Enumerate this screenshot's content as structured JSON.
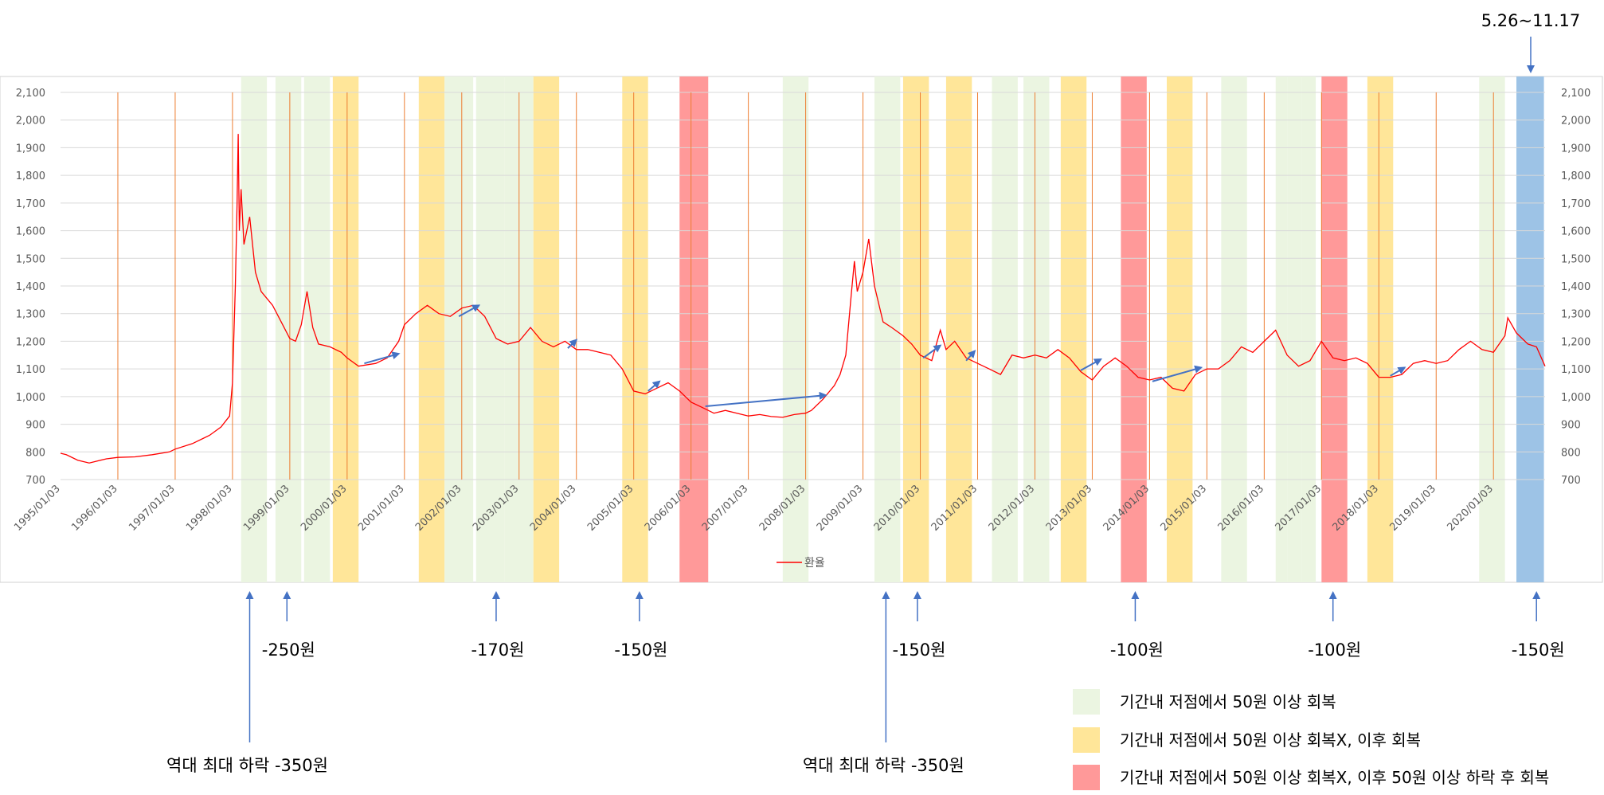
{
  "chart_data": {
    "type": "line",
    "title": "",
    "xlabel": "",
    "ylabel": "",
    "ylim": [
      700,
      2100
    ],
    "yticks": [
      "2,100",
      "2,000",
      "1,900",
      "1,800",
      "1,700",
      "1,600",
      "1,500",
      "1,400",
      "1,300",
      "1,200",
      "1,100",
      "1,000",
      "900",
      "800",
      "700"
    ],
    "xticks": [
      "1995/01/03",
      "1996/01/03",
      "1997/01/03",
      "1998/01/03",
      "1999/01/03",
      "2000/01/03",
      "2001/01/03",
      "2002/01/03",
      "2003/01/03",
      "2004/01/03",
      "2005/01/03",
      "2006/01/03",
      "2007/01/03",
      "2008/01/03",
      "2009/01/03",
      "2010/01/03",
      "2011/01/03",
      "2012/01/03",
      "2013/01/03",
      "2014/01/03",
      "2015/01/03",
      "2016/01/03",
      "2017/01/03",
      "2018/01/03",
      "2019/01/03",
      "2020/01/03"
    ],
    "series": [
      {
        "name": "환율",
        "color": "#ff0000",
        "points": [
          [
            1995.0,
            795
          ],
          [
            1995.1,
            790
          ],
          [
            1995.3,
            770
          ],
          [
            1995.5,
            760
          ],
          [
            1995.8,
            775
          ],
          [
            1996.0,
            780
          ],
          [
            1996.3,
            782
          ],
          [
            1996.6,
            790
          ],
          [
            1996.9,
            800
          ],
          [
            1997.0,
            810
          ],
          [
            1997.3,
            830
          ],
          [
            1997.6,
            860
          ],
          [
            1997.8,
            890
          ],
          [
            1997.95,
            930
          ],
          [
            1998.0,
            1050
          ],
          [
            1998.05,
            1400
          ],
          [
            1998.08,
            1700
          ],
          [
            1998.1,
            1950
          ],
          [
            1998.12,
            1600
          ],
          [
            1998.15,
            1750
          ],
          [
            1998.2,
            1550
          ],
          [
            1998.3,
            1650
          ],
          [
            1998.4,
            1450
          ],
          [
            1998.5,
            1380
          ],
          [
            1998.7,
            1330
          ],
          [
            1998.8,
            1290
          ],
          [
            1998.9,
            1250
          ],
          [
            1999.0,
            1210
          ],
          [
            1999.1,
            1200
          ],
          [
            1999.2,
            1260
          ],
          [
            1999.3,
            1380
          ],
          [
            1999.4,
            1250
          ],
          [
            1999.5,
            1190
          ],
          [
            1999.7,
            1180
          ],
          [
            1999.9,
            1160
          ],
          [
            2000.0,
            1140
          ],
          [
            2000.2,
            1110
          ],
          [
            2000.5,
            1120
          ],
          [
            2000.7,
            1140
          ],
          [
            2000.9,
            1200
          ],
          [
            2001.0,
            1260
          ],
          [
            2001.2,
            1300
          ],
          [
            2001.4,
            1330
          ],
          [
            2001.6,
            1300
          ],
          [
            2001.8,
            1290
          ],
          [
            2002.0,
            1320
          ],
          [
            2002.2,
            1330
          ],
          [
            2002.4,
            1290
          ],
          [
            2002.6,
            1210
          ],
          [
            2002.8,
            1190
          ],
          [
            2003.0,
            1200
          ],
          [
            2003.2,
            1250
          ],
          [
            2003.4,
            1200
          ],
          [
            2003.6,
            1180
          ],
          [
            2003.8,
            1200
          ],
          [
            2004.0,
            1170
          ],
          [
            2004.2,
            1170
          ],
          [
            2004.4,
            1160
          ],
          [
            2004.6,
            1150
          ],
          [
            2004.8,
            1100
          ],
          [
            2005.0,
            1020
          ],
          [
            2005.2,
            1010
          ],
          [
            2005.4,
            1030
          ],
          [
            2005.6,
            1050
          ],
          [
            2005.8,
            1020
          ],
          [
            2006.0,
            980
          ],
          [
            2006.2,
            960
          ],
          [
            2006.4,
            940
          ],
          [
            2006.6,
            950
          ],
          [
            2006.8,
            940
          ],
          [
            2007.0,
            930
          ],
          [
            2007.2,
            935
          ],
          [
            2007.4,
            928
          ],
          [
            2007.6,
            925
          ],
          [
            2007.8,
            935
          ],
          [
            2008.0,
            940
          ],
          [
            2008.1,
            950
          ],
          [
            2008.3,
            990
          ],
          [
            2008.5,
            1040
          ],
          [
            2008.6,
            1080
          ],
          [
            2008.7,
            1150
          ],
          [
            2008.8,
            1380
          ],
          [
            2008.85,
            1490
          ],
          [
            2008.9,
            1380
          ],
          [
            2009.0,
            1450
          ],
          [
            2009.1,
            1570
          ],
          [
            2009.2,
            1400
          ],
          [
            2009.35,
            1270
          ],
          [
            2009.5,
            1250
          ],
          [
            2009.7,
            1220
          ],
          [
            2009.85,
            1190
          ],
          [
            2010.0,
            1150
          ],
          [
            2010.2,
            1130
          ],
          [
            2010.35,
            1240
          ],
          [
            2010.45,
            1170
          ],
          [
            2010.6,
            1200
          ],
          [
            2010.8,
            1140
          ],
          [
            2011.0,
            1120
          ],
          [
            2011.2,
            1100
          ],
          [
            2011.4,
            1080
          ],
          [
            2011.6,
            1150
          ],
          [
            2011.8,
            1140
          ],
          [
            2012.0,
            1150
          ],
          [
            2012.2,
            1140
          ],
          [
            2012.4,
            1170
          ],
          [
            2012.6,
            1140
          ],
          [
            2012.8,
            1090
          ],
          [
            2013.0,
            1060
          ],
          [
            2013.2,
            1110
          ],
          [
            2013.4,
            1140
          ],
          [
            2013.6,
            1110
          ],
          [
            2013.8,
            1070
          ],
          [
            2014.0,
            1060
          ],
          [
            2014.2,
            1070
          ],
          [
            2014.4,
            1030
          ],
          [
            2014.6,
            1020
          ],
          [
            2014.8,
            1080
          ],
          [
            2015.0,
            1100
          ],
          [
            2015.2,
            1100
          ],
          [
            2015.4,
            1130
          ],
          [
            2015.6,
            1180
          ],
          [
            2015.8,
            1160
          ],
          [
            2016.0,
            1200
          ],
          [
            2016.2,
            1240
          ],
          [
            2016.4,
            1150
          ],
          [
            2016.6,
            1110
          ],
          [
            2016.8,
            1130
          ],
          [
            2017.0,
            1200
          ],
          [
            2017.2,
            1140
          ],
          [
            2017.4,
            1130
          ],
          [
            2017.6,
            1140
          ],
          [
            2017.8,
            1120
          ],
          [
            2018.0,
            1070
          ],
          [
            2018.2,
            1070
          ],
          [
            2018.4,
            1080
          ],
          [
            2018.6,
            1120
          ],
          [
            2018.8,
            1130
          ],
          [
            2019.0,
            1120
          ],
          [
            2019.2,
            1130
          ],
          [
            2019.4,
            1170
          ],
          [
            2019.6,
            1200
          ],
          [
            2019.8,
            1170
          ],
          [
            2020.0,
            1160
          ],
          [
            2020.2,
            1220
          ],
          [
            2020.25,
            1285
          ],
          [
            2020.4,
            1230
          ],
          [
            2020.6,
            1190
          ],
          [
            2020.75,
            1180
          ],
          [
            2020.9,
            1110
          ]
        ]
      }
    ],
    "legend": [
      "환율"
    ],
    "legend_position": "bottom",
    "vertical_lines": [
      1996.0,
      1997.0,
      1998.0,
      1999.0,
      2000.0,
      2001.0,
      2002.0,
      2003.0,
      2004.0,
      2005.0,
      2006.0,
      2007.0,
      2008.0,
      2009.0,
      2010.0,
      2011.0,
      2012.0,
      2013.0,
      2014.0,
      2015.0,
      2016.0,
      2017.0,
      2018.0,
      2019.0,
      2020.0
    ],
    "bands": [
      {
        "from": 1998.15,
        "to": 1998.6,
        "color": "green"
      },
      {
        "from": 1998.75,
        "to": 1999.2,
        "color": "green"
      },
      {
        "from": 1999.25,
        "to": 1999.7,
        "color": "green"
      },
      {
        "from": 1999.75,
        "to": 2000.2,
        "color": "yellow"
      },
      {
        "from": 2001.25,
        "to": 2001.7,
        "color": "yellow"
      },
      {
        "from": 2001.7,
        "to": 2002.2,
        "color": "green"
      },
      {
        "from": 2002.25,
        "to": 2002.75,
        "color": "green"
      },
      {
        "from": 2002.75,
        "to": 2003.25,
        "color": "green"
      },
      {
        "from": 2003.25,
        "to": 2003.7,
        "color": "yellow"
      },
      {
        "from": 2004.8,
        "to": 2005.25,
        "color": "yellow"
      },
      {
        "from": 2005.8,
        "to": 2006.3,
        "color": "red"
      },
      {
        "from": 2007.6,
        "to": 2008.05,
        "color": "green"
      },
      {
        "from": 2009.2,
        "to": 2009.65,
        "color": "green"
      },
      {
        "from": 2009.7,
        "to": 2010.15,
        "color": "yellow"
      },
      {
        "from": 2010.45,
        "to": 2010.9,
        "color": "yellow"
      },
      {
        "from": 2011.25,
        "to": 2011.7,
        "color": "green"
      },
      {
        "from": 2011.8,
        "to": 2012.25,
        "color": "green"
      },
      {
        "from": 2012.45,
        "to": 2012.9,
        "color": "yellow"
      },
      {
        "from": 2013.5,
        "to": 2013.95,
        "color": "red"
      },
      {
        "from": 2014.3,
        "to": 2014.75,
        "color": "yellow"
      },
      {
        "from": 2015.25,
        "to": 2015.7,
        "color": "green"
      },
      {
        "from": 2016.2,
        "to": 2016.4,
        "color": "green"
      },
      {
        "from": 2016.4,
        "to": 2016.65,
        "color": "green"
      },
      {
        "from": 2016.65,
        "to": 2016.9,
        "color": "green"
      },
      {
        "from": 2017.0,
        "to": 2017.45,
        "color": "red"
      },
      {
        "from": 2017.8,
        "to": 2018.25,
        "color": "yellow"
      },
      {
        "from": 2019.75,
        "to": 2020.2,
        "color": "green"
      },
      {
        "from": 2020.4,
        "to": 2020.88,
        "color": "blue"
      }
    ],
    "trend_arrows": [
      [
        [
          2000.3,
          1120
        ],
        [
          2000.9,
          1155
        ]
      ],
      [
        [
          2001.95,
          1290
        ],
        [
          2002.3,
          1330
        ]
      ],
      [
        [
          2003.85,
          1175
        ],
        [
          2004.0,
          1205
        ]
      ],
      [
        [
          2005.25,
          1020
        ],
        [
          2005.45,
          1055
        ]
      ],
      [
        [
          2006.25,
          965
        ],
        [
          2008.35,
          1005
        ]
      ],
      [
        [
          2010.05,
          1140
        ],
        [
          2010.35,
          1185
        ]
      ],
      [
        [
          2010.8,
          1130
        ],
        [
          2010.95,
          1165
        ]
      ],
      [
        [
          2012.8,
          1095
        ],
        [
          2013.15,
          1135
        ]
      ],
      [
        [
          2014.05,
          1055
        ],
        [
          2014.9,
          1105
        ]
      ],
      [
        [
          2018.2,
          1075
        ],
        [
          2018.45,
          1105
        ]
      ]
    ]
  },
  "annotations": {
    "top_label": "5.26~11.17",
    "drops": [
      {
        "x": 1998.3,
        "text": "역대 최대 하락 -350원",
        "long": true
      },
      {
        "x": 1998.95,
        "text": "-250원",
        "long": false
      },
      {
        "x": 2002.6,
        "text": "-170원",
        "long": false
      },
      {
        "x": 2005.1,
        "text": "-150원",
        "long": false
      },
      {
        "x": 2009.4,
        "text": "역대 최대 하락 -350원",
        "long": true
      },
      {
        "x": 2009.95,
        "text": "-150원",
        "long": false
      },
      {
        "x": 2013.75,
        "text": "-100원",
        "long": false
      },
      {
        "x": 2017.2,
        "text": "-100원",
        "long": false
      },
      {
        "x": 2020.75,
        "text": "-150원",
        "long": false
      }
    ]
  },
  "legend_box": [
    {
      "color": "#EBF5E1",
      "label": "기간내 저점에서 50원 이상 회복"
    },
    {
      "color": "#FFE699",
      "label": "기간내 저점에서 50원 이상 회복X, 이후 회복"
    },
    {
      "color": "#FF9999",
      "label": "기간내 저점에서 50원 이상 회복X, 이후 50원 이상 하락 후 회복"
    }
  ],
  "colors": {
    "green_band": "#EBF5E1",
    "yellow_band": "#FFE699",
    "red_band": "#FF9999",
    "blue_band": "#9DC3E6",
    "line": "#FF0000",
    "arrow": "#4472C4",
    "vline": "#ED7D31",
    "grid": "#D9D9D9"
  }
}
